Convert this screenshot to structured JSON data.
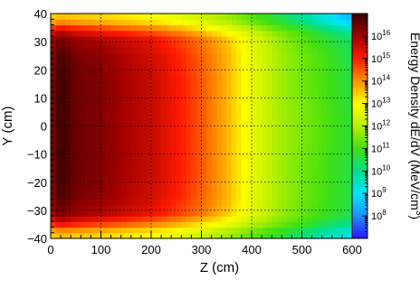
{
  "chart_data": {
    "type": "heatmap",
    "title": "",
    "xlabel": "Z (cm)",
    "ylabel": "Y (cm)",
    "xlim": [
      0,
      600
    ],
    "ylim": [
      -40,
      40
    ],
    "x_ticks": [
      "0",
      "100",
      "200",
      "300",
      "400",
      "500",
      "600"
    ],
    "y_ticks": [
      "−40",
      "−30",
      "−20",
      "−10",
      "0",
      "10",
      "20",
      "30",
      "40"
    ],
    "grid": true,
    "colorbar": {
      "label": "Energy Density dE/dV (MeV/cm",
      "label_superscript": "3",
      "label_close": ")",
      "scale": "log",
      "range": [
        10000000.0,
        1e+17
      ],
      "tick_labels": [
        {
          "base": "10",
          "exp": "16"
        },
        {
          "base": "10",
          "exp": "15"
        },
        {
          "base": "10",
          "exp": "14"
        },
        {
          "base": "10",
          "exp": "13"
        },
        {
          "base": "10",
          "exp": "12"
        },
        {
          "base": "10",
          "exp": "11"
        },
        {
          "base": "10",
          "exp": "10"
        },
        {
          "base": "10",
          "exp": "9"
        },
        {
          "base": "10",
          "exp": "8"
        }
      ],
      "colors": [
        "#2a14ff",
        "#1e90ff",
        "#00e5ff",
        "#00e08a",
        "#40e010",
        "#b8f000",
        "#ffff00",
        "#ff9000",
        "#ff1a00",
        "#a00000",
        "#3a0000"
      ]
    },
    "z_log10_grid": {
      "x_centers": [
        4,
        20,
        50,
        100,
        150,
        200,
        250,
        300,
        350,
        400,
        450,
        500,
        550,
        595
      ],
      "y_centers": [
        -38,
        -34,
        -31,
        -25,
        -15,
        -5,
        5,
        15,
        25,
        31,
        34,
        38
      ],
      "values": [
        [
          13.4,
          13.6,
          13.5,
          13.4,
          13.2,
          13.0,
          12.7,
          12.3,
          11.8,
          11.3,
          10.8,
          10.2,
          9.6,
          9.2
        ],
        [
          15.2,
          15.7,
          15.3,
          15.0,
          14.7,
          14.4,
          14.0,
          13.5,
          12.9,
          12.2,
          11.6,
          11.1,
          10.6,
          10.2
        ],
        [
          15.9,
          16.4,
          16.0,
          15.8,
          15.5,
          15.2,
          14.7,
          14.2,
          13.5,
          12.6,
          11.8,
          11.3,
          10.9,
          10.5
        ],
        [
          16.3,
          16.9,
          16.4,
          16.2,
          15.8,
          15.5,
          15.0,
          14.4,
          13.7,
          12.7,
          11.9,
          11.4,
          11.0,
          10.6
        ],
        [
          16.4,
          17.0,
          16.5,
          16.3,
          15.9,
          15.6,
          15.1,
          14.5,
          13.7,
          12.7,
          11.9,
          11.4,
          11.0,
          10.6
        ],
        [
          16.4,
          17.0,
          16.5,
          16.3,
          15.9,
          15.6,
          15.1,
          14.5,
          13.7,
          12.7,
          11.9,
          11.5,
          11.1,
          10.7
        ],
        [
          16.4,
          17.0,
          16.5,
          16.3,
          15.9,
          15.6,
          15.1,
          14.5,
          13.7,
          12.7,
          11.9,
          11.5,
          11.1,
          10.7
        ],
        [
          16.4,
          17.0,
          16.5,
          16.3,
          15.9,
          15.6,
          15.1,
          14.5,
          13.7,
          12.7,
          11.9,
          11.4,
          11.0,
          10.6
        ],
        [
          16.3,
          16.9,
          16.4,
          16.2,
          15.8,
          15.5,
          15.0,
          14.4,
          13.7,
          12.7,
          11.9,
          11.4,
          11.0,
          10.5
        ],
        [
          15.9,
          16.4,
          16.0,
          15.8,
          15.5,
          15.2,
          14.7,
          14.2,
          13.5,
          12.6,
          11.8,
          11.2,
          10.7,
          10.3
        ],
        [
          15.2,
          15.7,
          15.3,
          15.0,
          14.7,
          14.4,
          14.0,
          13.5,
          12.9,
          12.2,
          11.5,
          11.0,
          10.3,
          9.8
        ],
        [
          13.4,
          13.6,
          13.5,
          13.4,
          13.2,
          13.0,
          12.7,
          12.3,
          11.8,
          11.2,
          10.6,
          9.9,
          9.2,
          8.5
        ]
      ]
    }
  }
}
